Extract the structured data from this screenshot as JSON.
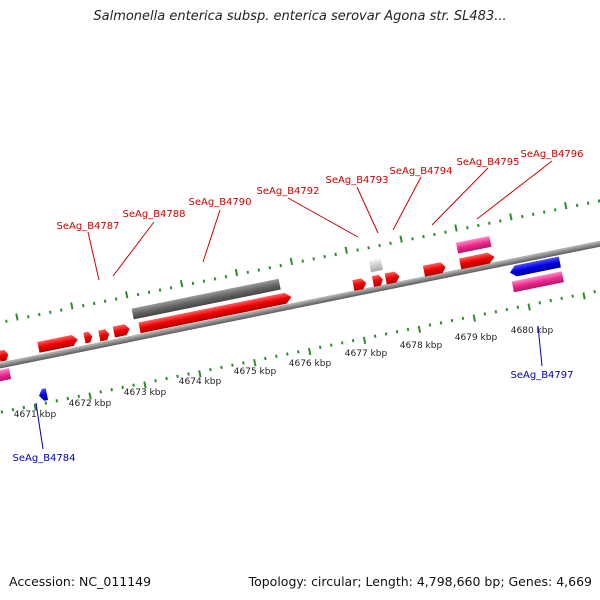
{
  "title": "Salmonella enterica subsp. enterica serovar Agona str. SL483...",
  "footer": {
    "accession_label": "Accession:",
    "accession": "NC_011149",
    "topology_label": "Topology:",
    "topology": "circular",
    "length_label": "Length:",
    "length": "4,798,660 bp",
    "genes_label": "Genes:",
    "genes": "4,669"
  },
  "colors": {
    "forward_cds": "#ff0000",
    "reverse_cds": "#0000ee",
    "pink_feature": "#ee2a8e",
    "dark_feature": "#666666",
    "light_feature": "#c8c8c8",
    "backbone": "#8c8c8c",
    "tick": "#2e8b2e",
    "label_forward": "#cc0000",
    "label_reverse": "#0000bb"
  },
  "tick_labels": [
    "4671 kbp",
    "4672 kbp",
    "4673 kbp",
    "4674 kbp",
    "4675 kbp",
    "4676 kbp",
    "4677 kbp",
    "4678 kbp",
    "4679 kbp",
    "4680 kbp"
  ],
  "gene_labels": {
    "forward": [
      "SeAg_B4787",
      "SeAg_B4788",
      "SeAg_B4790",
      "SeAg_B4792",
      "SeAg_B4793",
      "SeAg_B4794",
      "SeAg_B4795",
      "SeAg_B4796"
    ],
    "reverse": [
      "SeAg_B4784",
      "SeAg_B4797"
    ]
  }
}
